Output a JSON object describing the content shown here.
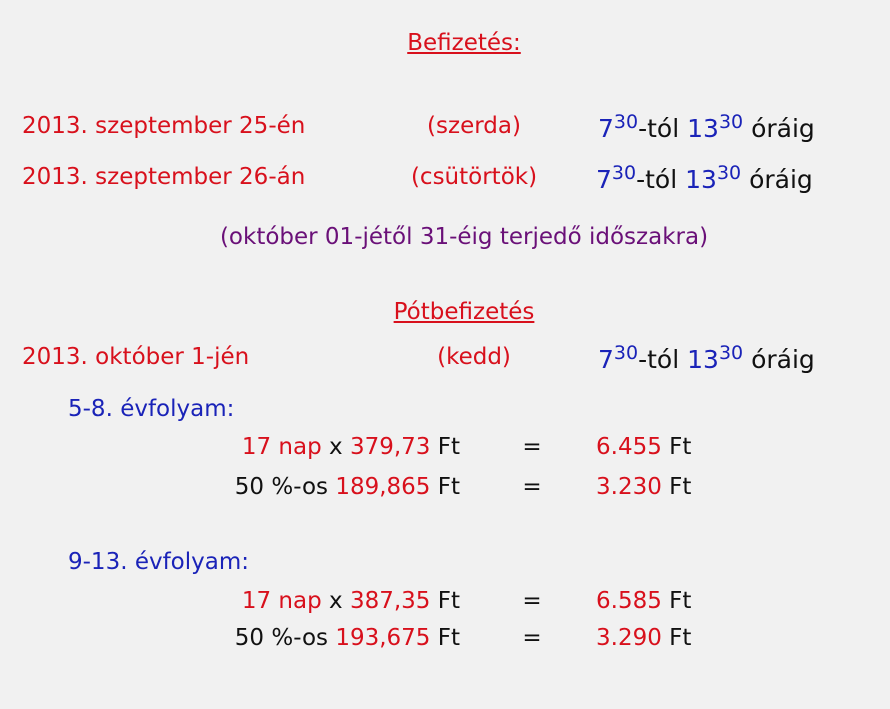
{
  "header": {
    "title": "Befizetés:"
  },
  "schedule": [
    {
      "date": "2013. szeptember 25-én",
      "day": "(szerda)",
      "time": {
        "h1": "7",
        "m1": "30",
        "mid": "-tól",
        "h2": "13",
        "m2": "30",
        "end": "óráig"
      }
    },
    {
      "date": "2013. szeptember 26-án",
      "day": "(csütörtök)",
      "time": {
        "h1": "7",
        "m1": "30",
        "mid": "-tól",
        "h2": "13",
        "m2": "30",
        "end": "óráig"
      }
    }
  ],
  "note": "(október 01-jétől 31-éig terjedő időszakra)",
  "makeup": {
    "title": "Pótbefizetés",
    "date": "2013. október 1-jén",
    "day": "(kedd)",
    "time": {
      "h1": "7",
      "m1": "30",
      "mid": "-tól",
      "h2": "13",
      "m2": "30",
      "end": "óráig"
    }
  },
  "groups": [
    {
      "label": "5-8. évfolyam:",
      "lines": [
        {
          "days": "17 nap",
          "times": "x",
          "rate": "379,73",
          "unit": "Ft",
          "eq": "=",
          "total": "6.455",
          "total_unit": "Ft"
        },
        {
          "prefix": "50 %-os",
          "rate": "189,865",
          "unit": "Ft",
          "eq": "=",
          "total": "3.230",
          "total_unit": "Ft"
        }
      ]
    },
    {
      "label": "9-13. évfolyam:",
      "lines": [
        {
          "days": "17 nap",
          "times": "x",
          "rate": "387,35",
          "unit": "Ft",
          "eq": "=",
          "total": "6.585",
          "total_unit": "Ft"
        },
        {
          "prefix": "50 %-os",
          "rate": "193,675",
          "unit": "Ft",
          "eq": "=",
          "total": "3.290",
          "total_unit": "Ft"
        }
      ]
    }
  ]
}
